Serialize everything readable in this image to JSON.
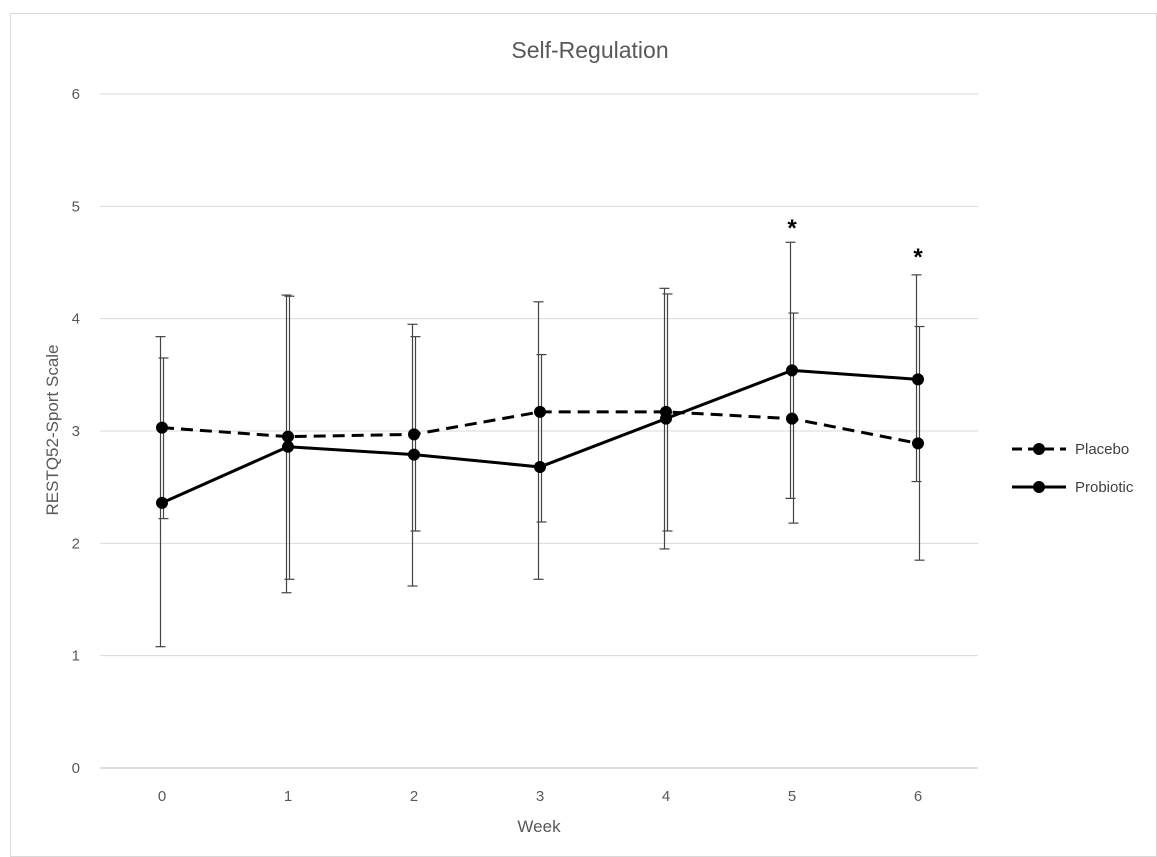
{
  "chart_data": {
    "type": "line",
    "title": "Self-Regulation",
    "xlabel": "Week",
    "ylabel": "RESTQ52-Sport Scale",
    "x": [
      0,
      1,
      2,
      3,
      4,
      5,
      6
    ],
    "x_tick_labels": [
      "0",
      "1",
      "2",
      "3",
      "4",
      "5",
      "6"
    ],
    "ylim": [
      0,
      6
    ],
    "y_ticks": [
      0,
      1,
      2,
      3,
      4,
      5,
      6
    ],
    "y_tick_labels": [
      "0",
      "1",
      "2",
      "3",
      "4",
      "5",
      "6"
    ],
    "grid": true,
    "legend_position": "right",
    "series": [
      {
        "name": "Placebo",
        "line_style": "dashed",
        "color": "#000000",
        "values": [
          3.03,
          2.95,
          2.97,
          3.17,
          3.17,
          3.11,
          2.89
        ],
        "error_upper": [
          3.65,
          4.2,
          3.84,
          3.68,
          4.22,
          4.05,
          3.93
        ],
        "error_lower": [
          2.22,
          1.68,
          2.11,
          2.19,
          2.11,
          2.18,
          1.85
        ]
      },
      {
        "name": "Probiotic",
        "line_style": "solid",
        "color": "#000000",
        "values": [
          2.36,
          2.86,
          2.79,
          2.68,
          3.11,
          3.54,
          3.46
        ],
        "error_upper": [
          3.84,
          4.21,
          3.95,
          4.15,
          4.27,
          4.68,
          4.39
        ],
        "error_lower": [
          1.08,
          1.56,
          1.62,
          1.68,
          1.95,
          2.4,
          2.55
        ]
      }
    ],
    "annotations": [
      {
        "x": 5,
        "y": 4.88,
        "text": "*"
      },
      {
        "x": 6,
        "y": 4.62,
        "text": "*"
      }
    ]
  }
}
